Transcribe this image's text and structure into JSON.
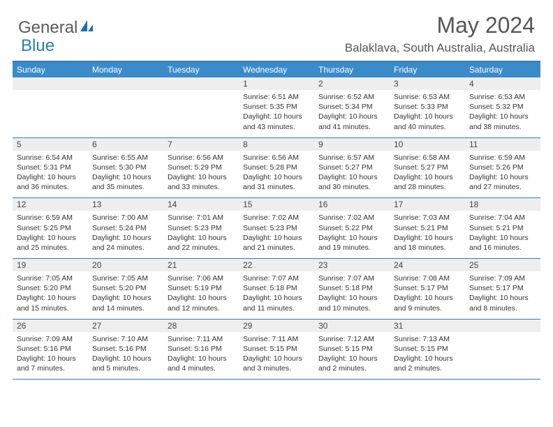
{
  "colors": {
    "header_bg": "#3b8bc9",
    "border": "#357ab8",
    "daynum_bg": "#eeeeee",
    "text": "#333333",
    "title": "#555555",
    "logo_gray": "#5a5a5a",
    "logo_blue": "#2a7ab8"
  },
  "logo": {
    "part1": "General",
    "part2": "Blue"
  },
  "title": "May 2024",
  "location": "Balaklava, South Australia, Australia",
  "dow": [
    "Sunday",
    "Monday",
    "Tuesday",
    "Wednesday",
    "Thursday",
    "Friday",
    "Saturday"
  ],
  "weeks": [
    [
      {
        "num": "",
        "lines": []
      },
      {
        "num": "",
        "lines": []
      },
      {
        "num": "",
        "lines": []
      },
      {
        "num": "1",
        "lines": [
          "Sunrise: 6:51 AM",
          "Sunset: 5:35 PM",
          "Daylight: 10 hours and 43 minutes."
        ]
      },
      {
        "num": "2",
        "lines": [
          "Sunrise: 6:52 AM",
          "Sunset: 5:34 PM",
          "Daylight: 10 hours and 41 minutes."
        ]
      },
      {
        "num": "3",
        "lines": [
          "Sunrise: 6:53 AM",
          "Sunset: 5:33 PM",
          "Daylight: 10 hours and 40 minutes."
        ]
      },
      {
        "num": "4",
        "lines": [
          "Sunrise: 6:53 AM",
          "Sunset: 5:32 PM",
          "Daylight: 10 hours and 38 minutes."
        ]
      }
    ],
    [
      {
        "num": "5",
        "lines": [
          "Sunrise: 6:54 AM",
          "Sunset: 5:31 PM",
          "Daylight: 10 hours and 36 minutes."
        ]
      },
      {
        "num": "6",
        "lines": [
          "Sunrise: 6:55 AM",
          "Sunset: 5:30 PM",
          "Daylight: 10 hours and 35 minutes."
        ]
      },
      {
        "num": "7",
        "lines": [
          "Sunrise: 6:56 AM",
          "Sunset: 5:29 PM",
          "Daylight: 10 hours and 33 minutes."
        ]
      },
      {
        "num": "8",
        "lines": [
          "Sunrise: 6:56 AM",
          "Sunset: 5:28 PM",
          "Daylight: 10 hours and 31 minutes."
        ]
      },
      {
        "num": "9",
        "lines": [
          "Sunrise: 6:57 AM",
          "Sunset: 5:27 PM",
          "Daylight: 10 hours and 30 minutes."
        ]
      },
      {
        "num": "10",
        "lines": [
          "Sunrise: 6:58 AM",
          "Sunset: 5:27 PM",
          "Daylight: 10 hours and 28 minutes."
        ]
      },
      {
        "num": "11",
        "lines": [
          "Sunrise: 6:59 AM",
          "Sunset: 5:26 PM",
          "Daylight: 10 hours and 27 minutes."
        ]
      }
    ],
    [
      {
        "num": "12",
        "lines": [
          "Sunrise: 6:59 AM",
          "Sunset: 5:25 PM",
          "Daylight: 10 hours and 25 minutes."
        ]
      },
      {
        "num": "13",
        "lines": [
          "Sunrise: 7:00 AM",
          "Sunset: 5:24 PM",
          "Daylight: 10 hours and 24 minutes."
        ]
      },
      {
        "num": "14",
        "lines": [
          "Sunrise: 7:01 AM",
          "Sunset: 5:23 PM",
          "Daylight: 10 hours and 22 minutes."
        ]
      },
      {
        "num": "15",
        "lines": [
          "Sunrise: 7:02 AM",
          "Sunset: 5:23 PM",
          "Daylight: 10 hours and 21 minutes."
        ]
      },
      {
        "num": "16",
        "lines": [
          "Sunrise: 7:02 AM",
          "Sunset: 5:22 PM",
          "Daylight: 10 hours and 19 minutes."
        ]
      },
      {
        "num": "17",
        "lines": [
          "Sunrise: 7:03 AM",
          "Sunset: 5:21 PM",
          "Daylight: 10 hours and 18 minutes."
        ]
      },
      {
        "num": "18",
        "lines": [
          "Sunrise: 7:04 AM",
          "Sunset: 5:21 PM",
          "Daylight: 10 hours and 16 minutes."
        ]
      }
    ],
    [
      {
        "num": "19",
        "lines": [
          "Sunrise: 7:05 AM",
          "Sunset: 5:20 PM",
          "Daylight: 10 hours and 15 minutes."
        ]
      },
      {
        "num": "20",
        "lines": [
          "Sunrise: 7:05 AM",
          "Sunset: 5:20 PM",
          "Daylight: 10 hours and 14 minutes."
        ]
      },
      {
        "num": "21",
        "lines": [
          "Sunrise: 7:06 AM",
          "Sunset: 5:19 PM",
          "Daylight: 10 hours and 12 minutes."
        ]
      },
      {
        "num": "22",
        "lines": [
          "Sunrise: 7:07 AM",
          "Sunset: 5:18 PM",
          "Daylight: 10 hours and 11 minutes."
        ]
      },
      {
        "num": "23",
        "lines": [
          "Sunrise: 7:07 AM",
          "Sunset: 5:18 PM",
          "Daylight: 10 hours and 10 minutes."
        ]
      },
      {
        "num": "24",
        "lines": [
          "Sunrise: 7:08 AM",
          "Sunset: 5:17 PM",
          "Daylight: 10 hours and 9 minutes."
        ]
      },
      {
        "num": "25",
        "lines": [
          "Sunrise: 7:09 AM",
          "Sunset: 5:17 PM",
          "Daylight: 10 hours and 8 minutes."
        ]
      }
    ],
    [
      {
        "num": "26",
        "lines": [
          "Sunrise: 7:09 AM",
          "Sunset: 5:16 PM",
          "Daylight: 10 hours and 7 minutes."
        ]
      },
      {
        "num": "27",
        "lines": [
          "Sunrise: 7:10 AM",
          "Sunset: 5:16 PM",
          "Daylight: 10 hours and 5 minutes."
        ]
      },
      {
        "num": "28",
        "lines": [
          "Sunrise: 7:11 AM",
          "Sunset: 5:16 PM",
          "Daylight: 10 hours and 4 minutes."
        ]
      },
      {
        "num": "29",
        "lines": [
          "Sunrise: 7:11 AM",
          "Sunset: 5:15 PM",
          "Daylight: 10 hours and 3 minutes."
        ]
      },
      {
        "num": "30",
        "lines": [
          "Sunrise: 7:12 AM",
          "Sunset: 5:15 PM",
          "Daylight: 10 hours and 2 minutes."
        ]
      },
      {
        "num": "31",
        "lines": [
          "Sunrise: 7:13 AM",
          "Sunset: 5:15 PM",
          "Daylight: 10 hours and 2 minutes."
        ]
      },
      {
        "num": "",
        "lines": []
      }
    ]
  ]
}
